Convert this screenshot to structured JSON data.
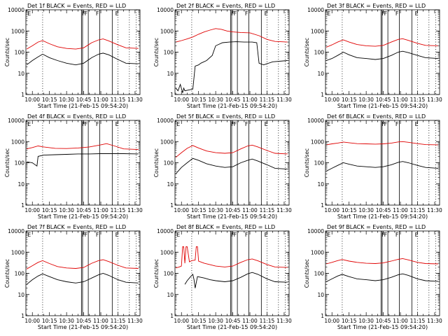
{
  "common": {
    "xlabel": "Start Time (21-Feb-15 09:54:20)",
    "ylabel": "Counts/sec",
    "x_ticks": [
      "10:00",
      "10:15",
      "10:30",
      "10:45",
      "11:00",
      "11:15",
      "11:30"
    ],
    "y_ticks": [
      "1",
      "10",
      "100",
      "1000",
      "10000"
    ]
  },
  "colors": {
    "events": "#000000",
    "lld": "#e00000",
    "axes": "#000000"
  },
  "chart_data": [
    {
      "type": "line",
      "title": "Det 1f BLACK = Events, RED = LLD",
      "y_scale": "log",
      "ylim": [
        1,
        10000
      ],
      "xlim": [
        "09:54:20",
        "11:34:20"
      ],
      "x_ticks": [
        "10:00",
        "10:15",
        "10:30",
        "10:45",
        "11:00",
        "11:15",
        "11:30"
      ],
      "y_ticks": [
        1,
        10,
        100,
        1000,
        10000
      ],
      "markers": [
        "E",
        "F",
        "F",
        "F",
        "E"
      ],
      "series": [
        {
          "name": "Events",
          "color": "#000000",
          "t": [
            "09:55",
            "10:00",
            "10:05",
            "10:09",
            "10:15",
            "10:22",
            "10:30",
            "10:38",
            "10:45",
            "10:52",
            "10:58",
            "11:02",
            "11:07",
            "11:15",
            "11:22",
            "11:33"
          ],
          "values": [
            25,
            40,
            60,
            80,
            55,
            40,
            30,
            25,
            30,
            55,
            80,
            90,
            75,
            45,
            30,
            28
          ]
        },
        {
          "name": "LLD",
          "color": "#e00000",
          "t": [
            "09:55",
            "10:00",
            "10:05",
            "10:09",
            "10:15",
            "10:22",
            "10:30",
            "10:38",
            "10:45",
            "10:52",
            "10:58",
            "11:02",
            "11:07",
            "11:15",
            "11:22",
            "11:33"
          ],
          "values": [
            140,
            200,
            300,
            350,
            250,
            180,
            150,
            140,
            160,
            280,
            380,
            420,
            340,
            220,
            160,
            150
          ]
        }
      ]
    },
    {
      "type": "line",
      "title": "Det 2f BLACK = Events, RED = LLD",
      "y_scale": "log",
      "ylim": [
        1,
        10000
      ],
      "xlim": [
        "09:54:20",
        "11:34:20"
      ],
      "x_ticks": [
        "10:00",
        "10:15",
        "10:30",
        "10:45",
        "11:00",
        "11:15",
        "11:30"
      ],
      "y_ticks": [
        1,
        10,
        100,
        1000,
        10000
      ],
      "markers": [
        "E",
        "F",
        "F",
        "F",
        "E"
      ],
      "series": [
        {
          "name": "Events",
          "color": "#000000",
          "t": [
            "09:55",
            "09:57",
            "09:59",
            "10:01",
            "10:02",
            "10:03",
            "10:10",
            "10:12",
            "10:15",
            "10:17",
            "10:22",
            "10:27",
            "10:30",
            "10:36",
            "10:42",
            "10:48",
            "10:55",
            "11:02",
            "11:06",
            "11:08",
            "11:12",
            "11:20",
            "11:33"
          ],
          "values": [
            2,
            1.5,
            3,
            1.2,
            2,
            1.5,
            1.8,
            22,
            25,
            30,
            40,
            70,
            200,
            280,
            300,
            310,
            300,
            300,
            280,
            30,
            25,
            35,
            40
          ]
        },
        {
          "name": "LLD",
          "color": "#e00000",
          "t": [
            "09:55",
            "10:00",
            "10:05",
            "10:10",
            "10:15",
            "10:20",
            "10:25",
            "10:30",
            "10:35",
            "10:40",
            "10:45",
            "10:52",
            "11:00",
            "11:08",
            "11:15",
            "11:22",
            "11:33"
          ],
          "values": [
            300,
            350,
            420,
            520,
            700,
            900,
            1100,
            1300,
            1200,
            1000,
            900,
            850,
            820,
            600,
            400,
            320,
            300
          ]
        }
      ]
    },
    {
      "type": "line",
      "title": "Det 3f BLACK = Events, RED = LLD",
      "y_scale": "log",
      "ylim": [
        1,
        10000
      ],
      "xlim": [
        "09:54:20",
        "11:34:20"
      ],
      "x_ticks": [
        "10:00",
        "10:15",
        "10:30",
        "10:45",
        "11:00",
        "11:15",
        "11:30"
      ],
      "y_ticks": [
        1,
        10,
        100,
        1000,
        10000
      ],
      "markers": [
        "E",
        "F",
        "F",
        "F",
        "E"
      ],
      "series": [
        {
          "name": "Events",
          "color": "#000000",
          "t": [
            "09:55",
            "10:00",
            "10:05",
            "10:10",
            "10:15",
            "10:22",
            "10:30",
            "10:38",
            "10:45",
            "10:52",
            "10:58",
            "11:02",
            "11:07",
            "11:15",
            "11:22",
            "11:33"
          ],
          "values": [
            40,
            50,
            70,
            100,
            75,
            55,
            50,
            45,
            50,
            70,
            100,
            110,
            95,
            70,
            55,
            50
          ]
        },
        {
          "name": "LLD",
          "color": "#e00000",
          "t": [
            "09:55",
            "10:00",
            "10:05",
            "10:10",
            "10:15",
            "10:22",
            "10:30",
            "10:38",
            "10:45",
            "10:52",
            "10:58",
            "11:02",
            "11:07",
            "11:15",
            "11:22",
            "11:33"
          ],
          "values": [
            170,
            220,
            300,
            380,
            300,
            230,
            200,
            190,
            210,
            300,
            400,
            430,
            360,
            260,
            210,
            200
          ]
        }
      ]
    },
    {
      "type": "line",
      "title": "Det 4f BLACK = Events, RED = LLD",
      "y_scale": "log",
      "ylim": [
        1,
        10000
      ],
      "xlim": [
        "09:54:20",
        "11:34:20"
      ],
      "x_ticks": [
        "10:00",
        "10:15",
        "10:30",
        "10:45",
        "11:00",
        "11:15",
        "11:30"
      ],
      "y_ticks": [
        1,
        10,
        100,
        1000,
        10000
      ],
      "markers": [
        "E",
        "F",
        "F",
        "F",
        "E"
      ],
      "series": [
        {
          "name": "Events",
          "color": "#000000",
          "t": [
            "09:55",
            "10:00",
            "10:04",
            "10:05",
            "10:10",
            "10:20",
            "10:30",
            "10:40",
            "10:50",
            "11:00",
            "11:10",
            "11:20",
            "11:33"
          ],
          "values": [
            110,
            100,
            70,
            200,
            230,
            240,
            250,
            260,
            260,
            270,
            270,
            270,
            260
          ]
        },
        {
          "name": "LLD",
          "color": "#e00000",
          "t": [
            "09:55",
            "10:00",
            "10:05",
            "10:10",
            "10:20",
            "10:30",
            "10:40",
            "10:50",
            "11:00",
            "11:05",
            "11:12",
            "11:20",
            "11:33"
          ],
          "values": [
            450,
            520,
            620,
            560,
            480,
            470,
            500,
            560,
            700,
            800,
            620,
            450,
            420
          ]
        }
      ]
    },
    {
      "type": "line",
      "title": "Det 5f BLACK = Events, RED = LLD",
      "y_scale": "log",
      "ylim": [
        1,
        10000
      ],
      "xlim": [
        "09:54:20",
        "11:34:20"
      ],
      "x_ticks": [
        "10:00",
        "10:15",
        "10:30",
        "10:45",
        "11:00",
        "11:15",
        "11:30"
      ],
      "y_ticks": [
        1,
        10,
        100,
        1000,
        10000
      ],
      "markers": [
        "E",
        "F",
        "F",
        "F",
        "E"
      ],
      "series": [
        {
          "name": "Events",
          "color": "#000000",
          "t": [
            "09:55",
            "10:00",
            "10:05",
            "10:10",
            "10:15",
            "10:22",
            "10:30",
            "10:38",
            "10:45",
            "10:52",
            "10:58",
            "11:02",
            "11:07",
            "11:15",
            "11:22",
            "11:33"
          ],
          "values": [
            30,
            60,
            100,
            160,
            130,
            90,
            70,
            60,
            65,
            100,
            130,
            150,
            120,
            80,
            55,
            50
          ]
        },
        {
          "name": "LLD",
          "color": "#e00000",
          "t": [
            "09:55",
            "10:00",
            "10:05",
            "10:10",
            "10:15",
            "10:22",
            "10:30",
            "10:38",
            "10:45",
            "10:52",
            "10:58",
            "11:02",
            "11:07",
            "11:15",
            "11:22",
            "11:33"
          ],
          "values": [
            180,
            300,
            480,
            650,
            500,
            360,
            300,
            280,
            300,
            450,
            620,
            680,
            560,
            380,
            280,
            260
          ]
        }
      ]
    },
    {
      "type": "line",
      "title": "Det 6f BLACK = Events, RED = LLD",
      "y_scale": "log",
      "ylim": [
        1,
        10000
      ],
      "xlim": [
        "09:54:20",
        "11:34:20"
      ],
      "x_ticks": [
        "10:00",
        "10:15",
        "10:30",
        "10:45",
        "11:00",
        "11:15",
        "11:30"
      ],
      "y_ticks": [
        1,
        10,
        100,
        1000,
        10000
      ],
      "markers": [
        "E",
        "F",
        "F",
        "F",
        "E"
      ],
      "series": [
        {
          "name": "Events",
          "color": "#000000",
          "t": [
            "09:55",
            "10:00",
            "10:05",
            "10:10",
            "10:15",
            "10:22",
            "10:30",
            "10:38",
            "10:45",
            "10:52",
            "10:58",
            "11:02",
            "11:07",
            "11:15",
            "11:22",
            "11:33"
          ],
          "values": [
            40,
            55,
            75,
            100,
            85,
            70,
            65,
            60,
            65,
            80,
            105,
            115,
            100,
            75,
            60,
            55
          ]
        },
        {
          "name": "LLD",
          "color": "#e00000",
          "t": [
            "09:55",
            "10:00",
            "10:05",
            "10:10",
            "10:15",
            "10:22",
            "10:30",
            "10:38",
            "10:45",
            "10:52",
            "10:58",
            "11:02",
            "11:07",
            "11:15",
            "11:22",
            "11:33"
          ],
          "values": [
            700,
            780,
            850,
            950,
            880,
            800,
            780,
            760,
            780,
            850,
            960,
            1000,
            920,
            800,
            720,
            700
          ]
        }
      ]
    },
    {
      "type": "line",
      "title": "Det 7f BLACK = Events, RED = LLD",
      "y_scale": "log",
      "ylim": [
        1,
        10000
      ],
      "xlim": [
        "09:54:20",
        "11:34:20"
      ],
      "x_ticks": [
        "10:00",
        "10:15",
        "10:30",
        "10:45",
        "11:00",
        "11:15",
        "11:30"
      ],
      "y_ticks": [
        1,
        10,
        100,
        1000,
        10000
      ],
      "markers": [
        "E",
        "F",
        "F",
        "F",
        "E"
      ],
      "series": [
        {
          "name": "Events",
          "color": "#000000",
          "t": [
            "09:55",
            "10:00",
            "10:05",
            "10:09",
            "10:15",
            "10:22",
            "10:30",
            "10:38",
            "10:45",
            "10:52",
            "10:58",
            "11:02",
            "11:07",
            "11:15",
            "11:22",
            "11:33"
          ],
          "values": [
            30,
            50,
            75,
            95,
            70,
            50,
            40,
            35,
            40,
            60,
            85,
            100,
            80,
            50,
            38,
            35
          ]
        },
        {
          "name": "LLD",
          "color": "#e00000",
          "t": [
            "09:55",
            "10:00",
            "10:05",
            "10:09",
            "10:15",
            "10:22",
            "10:30",
            "10:38",
            "10:45",
            "10:52",
            "10:58",
            "11:02",
            "11:07",
            "11:15",
            "11:22",
            "11:33"
          ],
          "values": [
            160,
            230,
            330,
            400,
            290,
            210,
            180,
            170,
            190,
            300,
            400,
            440,
            360,
            240,
            180,
            170
          ]
        }
      ]
    },
    {
      "type": "line",
      "title": "Det 8f BLACK = Events, RED = LLD",
      "y_scale": "log",
      "ylim": [
        1,
        10000
      ],
      "xlim": [
        "09:54:20",
        "11:34:20"
      ],
      "x_ticks": [
        "10:00",
        "10:15",
        "10:30",
        "10:45",
        "11:00",
        "11:15",
        "11:30"
      ],
      "y_ticks": [
        1,
        10,
        100,
        1000,
        10000
      ],
      "markers": [
        "E",
        "F",
        "F",
        "F",
        "E"
      ],
      "series": [
        {
          "name": "Events",
          "color": "#000000",
          "t": [
            "10:03",
            "10:05",
            "10:07",
            "10:09",
            "10:10",
            "10:11",
            "10:12",
            "10:14",
            "10:20",
            "10:25",
            "10:30",
            "10:38",
            "10:45",
            "10:52",
            "10:58",
            "11:02",
            "11:07",
            "11:15",
            "11:22",
            "11:33"
          ],
          "values": [
            30,
            45,
            60,
            80,
            90,
            50,
            20,
            70,
            60,
            50,
            45,
            40,
            45,
            65,
            95,
            110,
            90,
            55,
            40,
            38
          ]
        },
        {
          "name": "LLD",
          "color": "#e00000",
          "t": [
            "09:55",
            "09:58",
            "10:00",
            "10:01",
            "10:02",
            "10:03",
            "10:04",
            "10:05",
            "10:07",
            "10:09",
            "10:12",
            "10:13",
            "10:14",
            "10:15",
            "10:20",
            "10:30",
            "10:38",
            "10:45",
            "10:52",
            "10:58",
            "11:02",
            "11:07",
            "11:15",
            "11:22",
            "11:33"
          ],
          "values": [
            180,
            200,
            220,
            1800,
            1800,
            300,
            1800,
            1800,
            350,
            400,
            420,
            1800,
            1800,
            380,
            300,
            220,
            200,
            220,
            330,
            440,
            480,
            390,
            260,
            200,
            190
          ]
        }
      ]
    },
    {
      "type": "line",
      "title": "Det 9f BLACK = Events, RED = LLD",
      "y_scale": "log",
      "ylim": [
        1,
        10000
      ],
      "xlim": [
        "09:54:20",
        "11:34:20"
      ],
      "x_ticks": [
        "10:00",
        "10:15",
        "10:30",
        "10:45",
        "11:00",
        "11:15",
        "11:30"
      ],
      "y_ticks": [
        1,
        10,
        100,
        1000,
        10000
      ],
      "markers": [
        "E",
        "F",
        "F",
        "F",
        "E"
      ],
      "series": [
        {
          "name": "Events",
          "color": "#000000",
          "t": [
            "09:55",
            "10:00",
            "10:05",
            "10:09",
            "10:15",
            "10:22",
            "10:30",
            "10:38",
            "10:45",
            "10:52",
            "10:58",
            "11:02",
            "11:07",
            "11:15",
            "11:22",
            "11:33"
          ],
          "values": [
            40,
            55,
            75,
            90,
            70,
            55,
            50,
            45,
            50,
            65,
            85,
            95,
            80,
            55,
            45,
            42
          ]
        },
        {
          "name": "LLD",
          "color": "#e00000",
          "t": [
            "09:55",
            "10:00",
            "10:05",
            "10:09",
            "10:15",
            "10:22",
            "10:30",
            "10:38",
            "10:45",
            "10:52",
            "10:58",
            "11:02",
            "11:07",
            "11:15",
            "11:22",
            "11:33"
          ],
          "values": [
            280,
            330,
            400,
            450,
            380,
            330,
            300,
            290,
            310,
            380,
            460,
            500,
            430,
            330,
            290,
            280
          ]
        }
      ]
    }
  ]
}
